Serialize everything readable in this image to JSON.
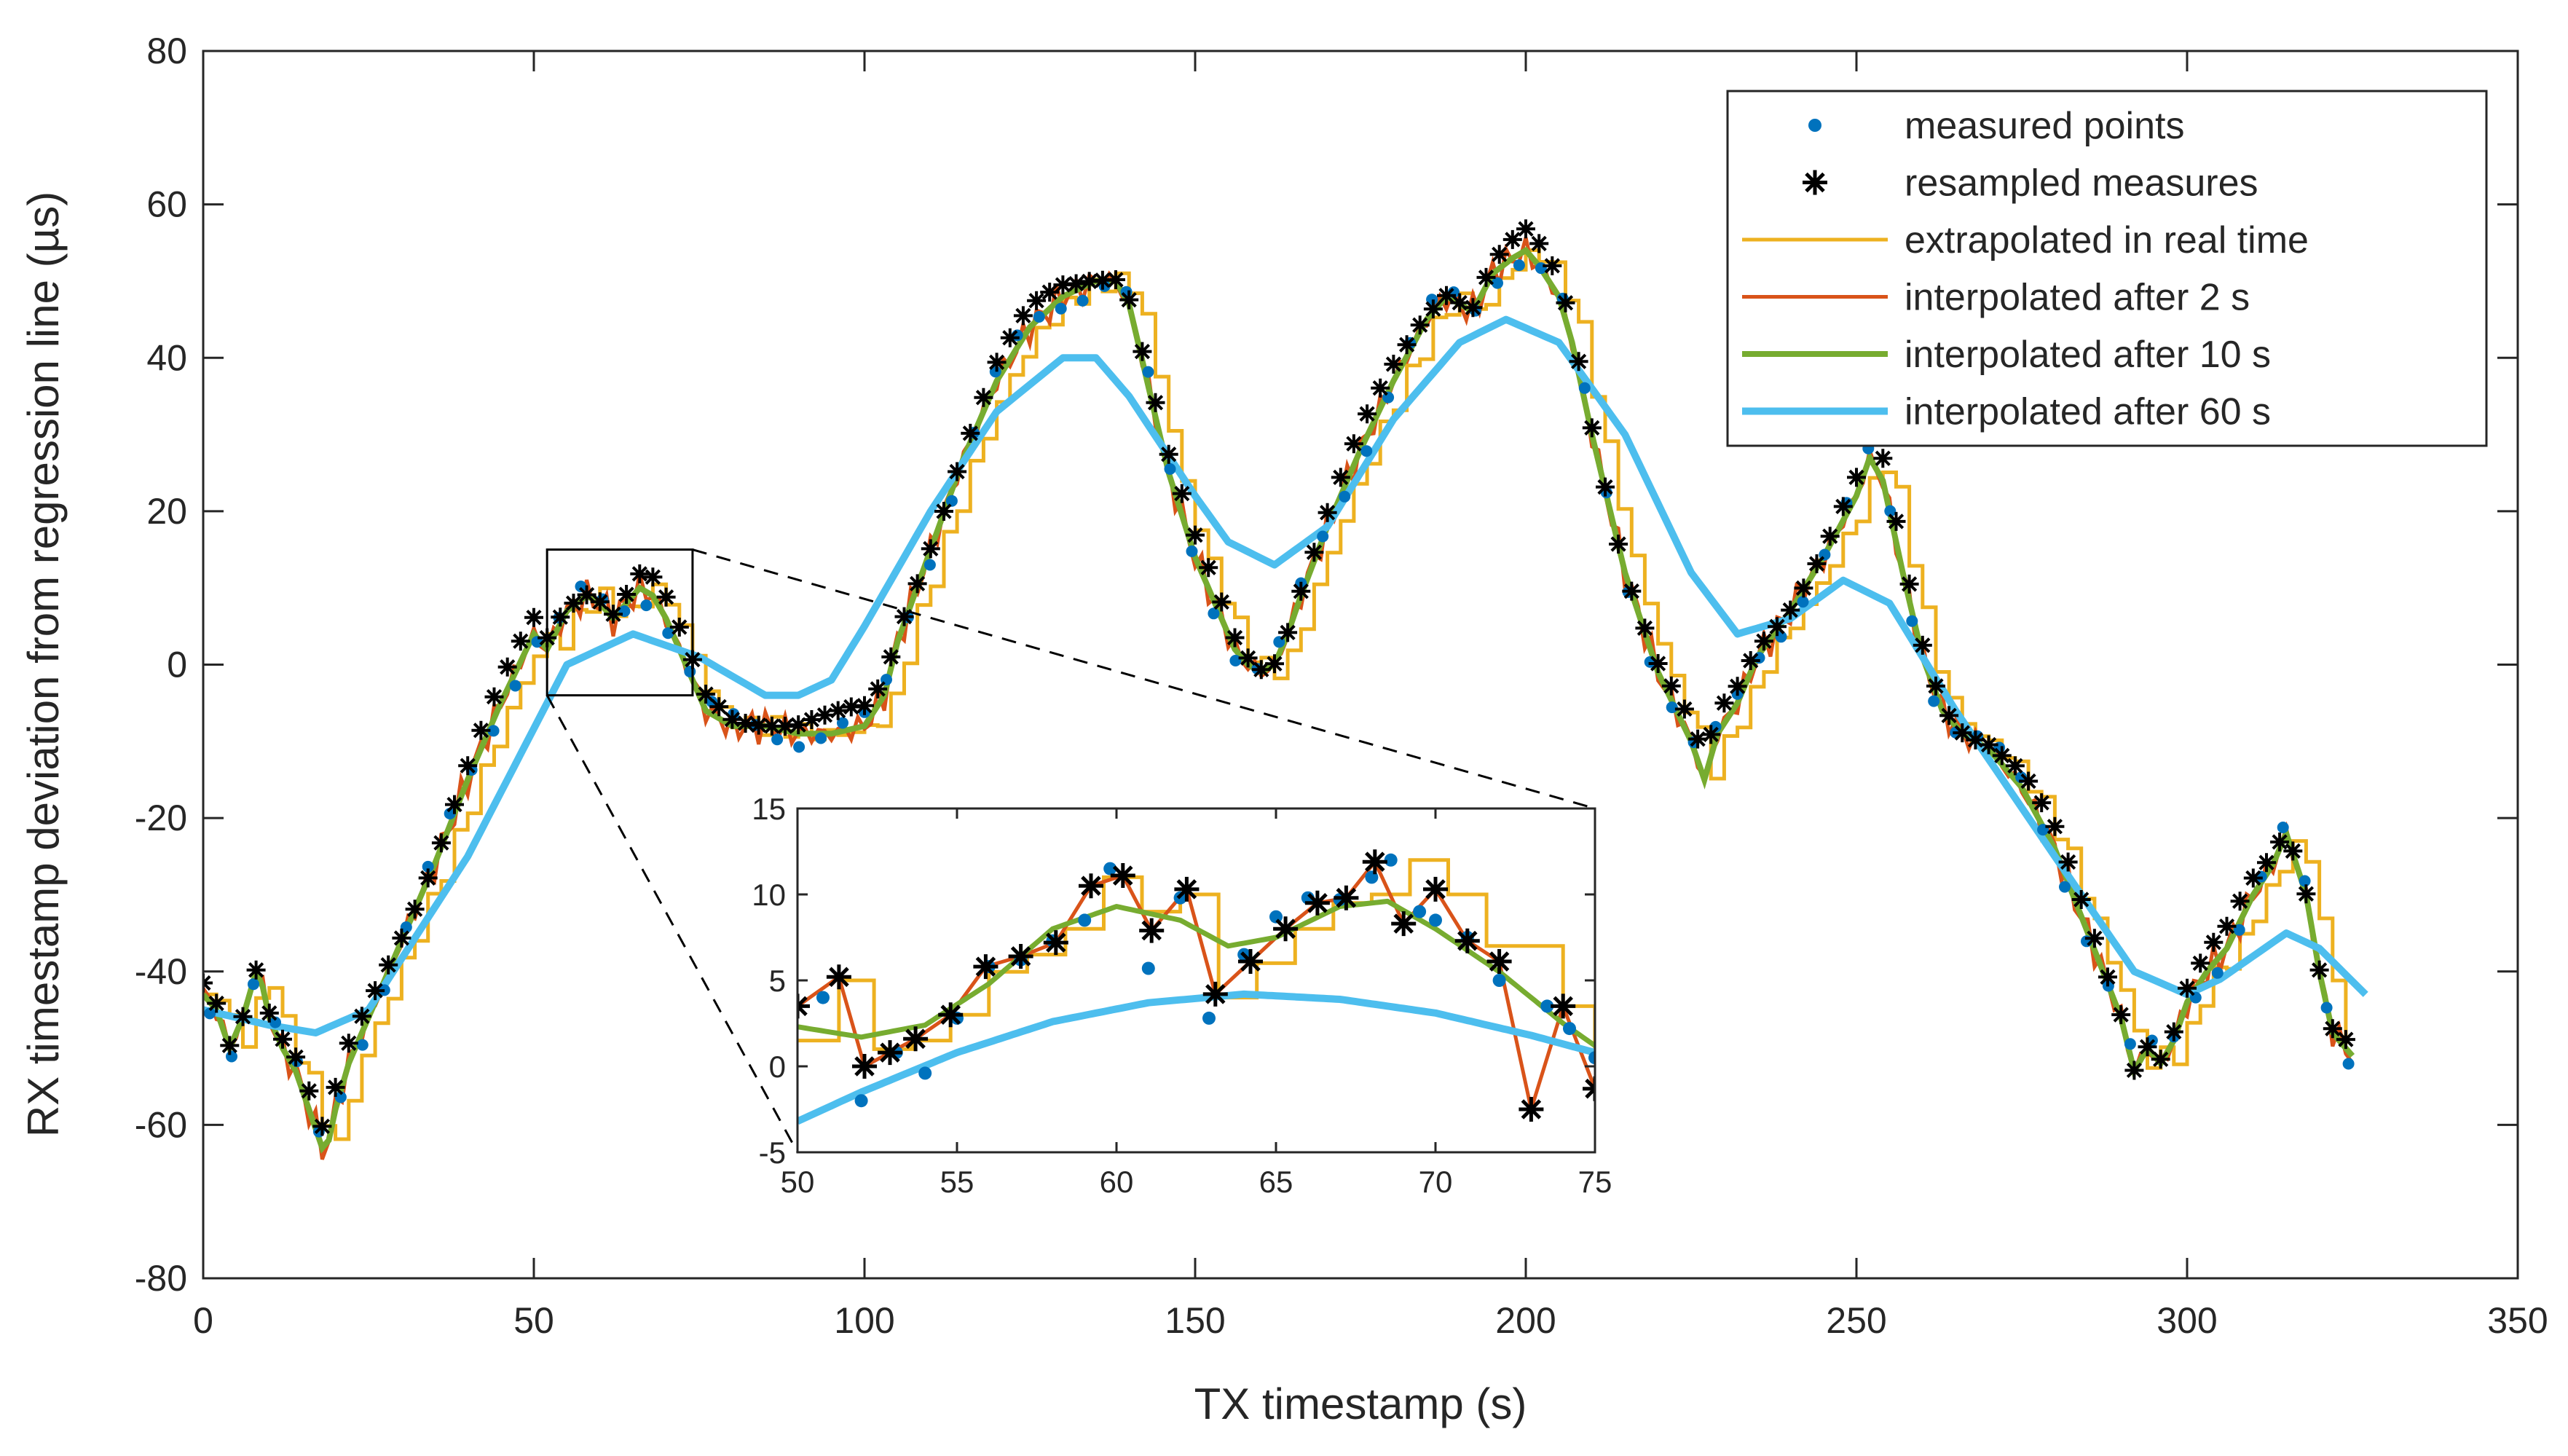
{
  "chart_data": {
    "type": "line",
    "title": "",
    "xlabel": "TX timestamp (s)",
    "ylabel": "RX timestamp deviation from regression line (µs)",
    "xlim": [
      0,
      350
    ],
    "ylim": [
      -80,
      80
    ],
    "x_ticks": [
      "0",
      "50",
      "100",
      "150",
      "200",
      "250",
      "300",
      "350"
    ],
    "y_ticks": [
      "80",
      "60",
      "40",
      "20",
      "0",
      "-20",
      "-40",
      "-60",
      "-80"
    ],
    "grid": false,
    "legend_position": "top-right",
    "colors": {
      "measured": "#0072BD",
      "resampled": "#000000",
      "extrapolated": "#EDB120",
      "interp2": "#D95319",
      "interp10": "#77AC30",
      "interp60": "#4DBEEE"
    },
    "legend": [
      {
        "label": "measured points",
        "key": "measured",
        "style": "dot"
      },
      {
        "label": "resampled measures",
        "key": "resampled",
        "style": "star"
      },
      {
        "label": "extrapolated in real time",
        "key": "extrapolated",
        "style": "line"
      },
      {
        "label": "interpolated after   2 s",
        "key": "interp2",
        "style": "line"
      },
      {
        "label": "interpolated after 10 s",
        "key": "interp10",
        "style": "line"
      },
      {
        "label": "interpolated after 60 s",
        "key": "interp60",
        "style": "line"
      }
    ],
    "main_curve": {
      "x": [
        0,
        2,
        4,
        6,
        8,
        9,
        10,
        12,
        14,
        16,
        18,
        19,
        20,
        22,
        24,
        26,
        28,
        30,
        35,
        40,
        45,
        50,
        52,
        55,
        58,
        60,
        62,
        64,
        66,
        68,
        70,
        72,
        74,
        76,
        80,
        85,
        90,
        95,
        100,
        103,
        105,
        110,
        115,
        120,
        125,
        130,
        135,
        138,
        140,
        143,
        146,
        150,
        153,
        156,
        158,
        160,
        162,
        164,
        166,
        170,
        175,
        180,
        185,
        188,
        190,
        192,
        195,
        198,
        200,
        202,
        205,
        207,
        210,
        215,
        220,
        225,
        227,
        229,
        232,
        235,
        240,
        245,
        250,
        252,
        254,
        257,
        260,
        263,
        266,
        270,
        275,
        280,
        285,
        290,
        292,
        294,
        296,
        298,
        300,
        303,
        306,
        310,
        313,
        315,
        318,
        320,
        322,
        325
      ],
      "y": [
        -43,
        -45,
        -50,
        -46,
        -40,
        -42,
        -46,
        -50,
        -53,
        -58,
        -63,
        -62,
        -58,
        -52,
        -48,
        -44,
        -40,
        -36,
        -26,
        -15,
        -5,
        4,
        2,
        7,
        9,
        8,
        6,
        8,
        10,
        9,
        6,
        2,
        -2,
        -6,
        -8,
        -8,
        -9,
        -9,
        -8,
        -4,
        3,
        15,
        27,
        37,
        44,
        48,
        50,
        50,
        47,
        36,
        25,
        14,
        8,
        2,
        0,
        -1,
        0,
        4,
        9,
        18,
        28,
        37,
        45,
        48,
        47,
        46,
        51,
        53,
        54,
        52,
        48,
        42,
        30,
        12,
        -1,
        -10,
        -15,
        -9,
        -5,
        1,
        7,
        14,
        22,
        27,
        24,
        12,
        1,
        -6,
        -9,
        -11,
        -16,
        -24,
        -35,
        -46,
        -53,
        -50,
        -52,
        -49,
        -44,
        -40,
        -37,
        -30,
        -26,
        -22,
        -30,
        -40,
        -48,
        -51
      ]
    },
    "smooth_60s": {
      "x": [
        0,
        10,
        17,
        25,
        40,
        55,
        65,
        75,
        85,
        90,
        95,
        100,
        110,
        120,
        130,
        135,
        140,
        150,
        155,
        162,
        170,
        180,
        190,
        197,
        205,
        215,
        225,
        232,
        240,
        248,
        255,
        265,
        280,
        292,
        300,
        305,
        315,
        320,
        327
      ],
      "y": [
        -45,
        -47,
        -48,
        -45,
        -25,
        0,
        4,
        1,
        -4,
        -4,
        -2,
        5,
        20,
        33,
        40,
        40,
        35,
        22,
        16,
        13,
        18,
        32,
        42,
        45,
        42,
        30,
        12,
        4,
        6,
        11,
        8,
        -6,
        -25,
        -40,
        -43,
        -41,
        -35,
        -37,
        -43
      ]
    },
    "inset": {
      "xlim": [
        50,
        75
      ],
      "ylim": [
        -5,
        15
      ],
      "x_ticks": [
        "50",
        "55",
        "60",
        "65",
        "70",
        "75"
      ],
      "y_ticks": [
        "15",
        "10",
        "5",
        "0",
        "-5"
      ],
      "source_box": {
        "x": [
          52,
          74
        ],
        "y": [
          -4,
          15
        ]
      },
      "resampled": {
        "x": [
          50,
          51.3,
          52.1,
          52.9,
          53.7,
          54.8,
          55.9,
          57.0,
          58.1,
          59.2,
          60.2,
          61.1,
          62.2,
          63.1,
          64.2,
          65.3,
          66.3,
          67.2,
          68.1,
          69.0,
          70.0,
          71.0,
          72.0,
          73.0,
          74.0,
          75.0
        ],
        "y": [
          3.5,
          5.2,
          0,
          0.8,
          1.6,
          3.0,
          5.8,
          6.4,
          7.2,
          10.5,
          11.1,
          7.9,
          10.3,
          4.2,
          6.1,
          8.0,
          9.5,
          9.8,
          11.9,
          8.3,
          10.3,
          7.3,
          6.1,
          -2.5,
          3.5,
          -1.3
        ]
      },
      "measured": {
        "x": [
          50.8,
          52.0,
          53.1,
          54.0,
          55.0,
          56.0,
          57.0,
          58.0,
          59.0,
          59.8,
          61.0,
          62.0,
          62.9,
          64.0,
          65.0,
          66.0,
          67.0,
          68.0,
          68.6,
          69.5,
          70.0,
          71.0,
          72.0,
          73.5,
          74.2,
          75.0
        ],
        "y": [
          4.0,
          -2.0,
          0.8,
          -0.4,
          2.8,
          5.8,
          6.2,
          7.3,
          8.5,
          11.5,
          5.7,
          9.8,
          2.8,
          6.5,
          8.7,
          9.8,
          9.7,
          11.0,
          12.0,
          9.0,
          8.5,
          7.5,
          5.0,
          3.5,
          2.2,
          0.5
        ]
      },
      "interp_2s": {
        "x": [
          50,
          51.3,
          52.1,
          52.9,
          53.7,
          54.8,
          55.9,
          57.0,
          58.1,
          59.2,
          60.2,
          61.1,
          62.2,
          63.1,
          64.2,
          65.3,
          66.3,
          67.2,
          68.1,
          69.0,
          70.0,
          71.0,
          72.0,
          73.0,
          74.0,
          75.0
        ],
        "y": [
          3.5,
          5.2,
          0,
          0.8,
          1.6,
          3.0,
          5.8,
          6.4,
          7.2,
          10.5,
          11.1,
          7.9,
          10.3,
          4.2,
          6.1,
          8.0,
          9.5,
          9.8,
          11.9,
          8.3,
          10.3,
          7.3,
          6.1,
          -2.5,
          3.5,
          -1.3
        ]
      },
      "interp_10s": {
        "x": [
          50,
          52,
          54,
          56,
          58,
          60,
          62,
          63.5,
          65,
          67,
          68.5,
          70,
          72,
          74,
          75
        ],
        "y": [
          2.3,
          1.7,
          2.4,
          4.8,
          8.0,
          9.3,
          8.5,
          7.0,
          7.5,
          9.3,
          9.6,
          8.0,
          5.5,
          2.5,
          1.2
        ]
      },
      "interp_60s": {
        "x": [
          50,
          52,
          55,
          58,
          61,
          64,
          67,
          70,
          73,
          75
        ],
        "y": [
          -3.2,
          -1.5,
          0.8,
          2.6,
          3.7,
          4.2,
          3.9,
          3.1,
          1.8,
          0.8
        ]
      },
      "extrapolated_steps": {
        "x": [
          50,
          51.3,
          52.4,
          53.6,
          54.8,
          56.0,
          57.2,
          58.4,
          59.6,
          60.8,
          62.0,
          63.2,
          64.4,
          65.6,
          66.8,
          68.0,
          69.2,
          70.4,
          71.6,
          72.8,
          74.0,
          75.0
        ],
        "y": [
          1.5,
          5.0,
          1.0,
          1.5,
          3.0,
          5.5,
          6.5,
          8.0,
          11.0,
          9.0,
          10.0,
          4.0,
          6.0,
          8.0,
          9.5,
          10.0,
          12.0,
          10.0,
          7.0,
          7.0,
          3.5,
          0.5
        ]
      }
    }
  }
}
